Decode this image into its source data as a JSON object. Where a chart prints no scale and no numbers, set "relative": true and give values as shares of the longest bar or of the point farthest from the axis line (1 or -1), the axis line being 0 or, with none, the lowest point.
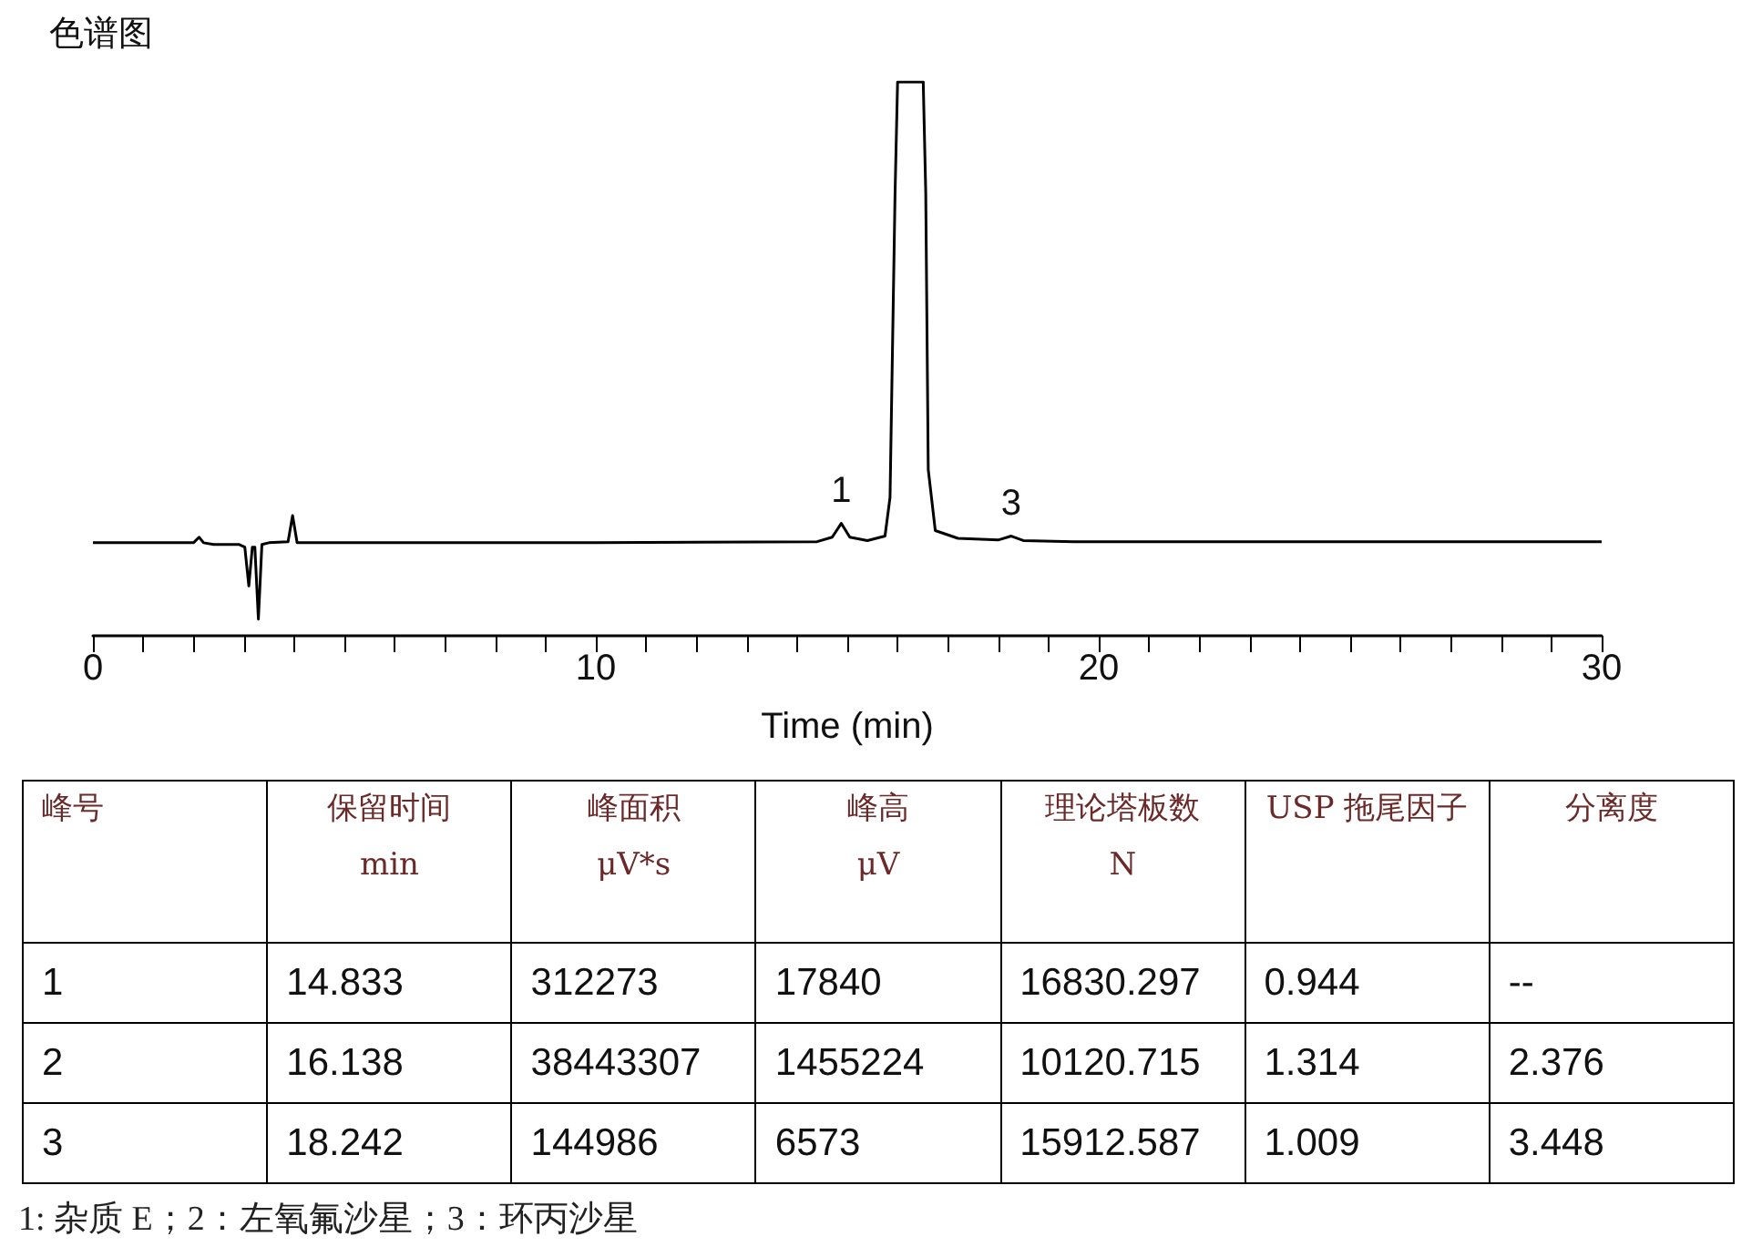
{
  "chart_data": [
    {
      "type": "line",
      "title": "色谱图",
      "xlabel": "Time (min)",
      "relative": true,
      "color": "#000000",
      "marker": "none",
      "tick_labels": "x",
      "xlim": [
        0,
        30
      ],
      "xticks": [
        0,
        {
          "value": 1,
          "label": null
        },
        {
          "value": 2,
          "label": null
        },
        {
          "value": 3,
          "label": null
        },
        {
          "value": 4,
          "label": null
        },
        {
          "value": 5,
          "label": null
        },
        {
          "value": 6,
          "label": null
        },
        {
          "value": 7,
          "label": null
        },
        {
          "value": 8,
          "label": null
        },
        {
          "value": 9,
          "label": null
        },
        10,
        {
          "value": 11,
          "label": null
        },
        {
          "value": 12,
          "label": null
        },
        {
          "value": 13,
          "label": null
        },
        {
          "value": 14,
          "label": null
        },
        {
          "value": 15,
          "label": null
        },
        {
          "value": 16,
          "label": null
        },
        {
          "value": 17,
          "label": null
        },
        {
          "value": 18,
          "label": null
        },
        {
          "value": 19,
          "label": null
        },
        20,
        {
          "value": 21,
          "label": null
        },
        {
          "value": 22,
          "label": null
        },
        {
          "value": 23,
          "label": null
        },
        {
          "value": 24,
          "label": null
        },
        {
          "value": 25,
          "label": null
        },
        {
          "value": 26,
          "label": null
        },
        {
          "value": 27,
          "label": null
        },
        {
          "value": 28,
          "label": null
        },
        {
          "value": 29,
          "label": null
        },
        30
      ],
      "x": [
        0,
        2.0,
        2.11,
        2.2,
        2.4,
        2.9,
        3.02,
        3.1,
        3.17,
        3.22,
        3.29,
        3.36,
        3.5,
        3.88,
        3.97,
        4.06,
        10,
        14.4,
        14.7,
        14.88,
        15.05,
        15.4,
        15.75,
        15.85,
        15.95,
        16.0,
        16.51,
        16.56,
        16.61,
        16.75,
        17.2,
        18.0,
        18.26,
        18.5,
        19.5,
        30
      ],
      "values": [
        0.168,
        0.168,
        0.178,
        0.168,
        0.165,
        0.165,
        0.16,
        0.09,
        0.16,
        0.16,
        0.03,
        0.165,
        0.168,
        0.17,
        0.217,
        0.168,
        0.168,
        0.17,
        0.178,
        0.203,
        0.178,
        0.172,
        0.18,
        0.25,
        0.8,
        1,
        1,
        0.8,
        0.3,
        0.19,
        0.176,
        0.173,
        0.18,
        0.172,
        0.17,
        0.17
      ],
      "annotations": [
        {
          "text": "1",
          "x": 14.88,
          "y": 0.203
        },
        {
          "text": "3",
          "x": 18.26,
          "y": 0.18
        }
      ]
    },
    {
      "type": "other",
      "annotations": [
        "峰号",
        "保留时间\nmin",
        "峰面积\nμV*s",
        "峰高\nμV",
        "理论塔板数\nN",
        "USP 拖尾因子",
        "分离度",
        "1",
        "14.833",
        "312273",
        "17840",
        "16830.297",
        "0.944",
        "--",
        "2",
        "16.138",
        "38443307",
        "1455224",
        "10120.715",
        "1.314",
        "2.376",
        "3",
        "18.242",
        "144986",
        "6573",
        "15912.587",
        "1.009",
        "3.448",
        "1: 杂质 E；2：左氧氟沙星；3：环丙沙星"
      ]
    }
  ]
}
